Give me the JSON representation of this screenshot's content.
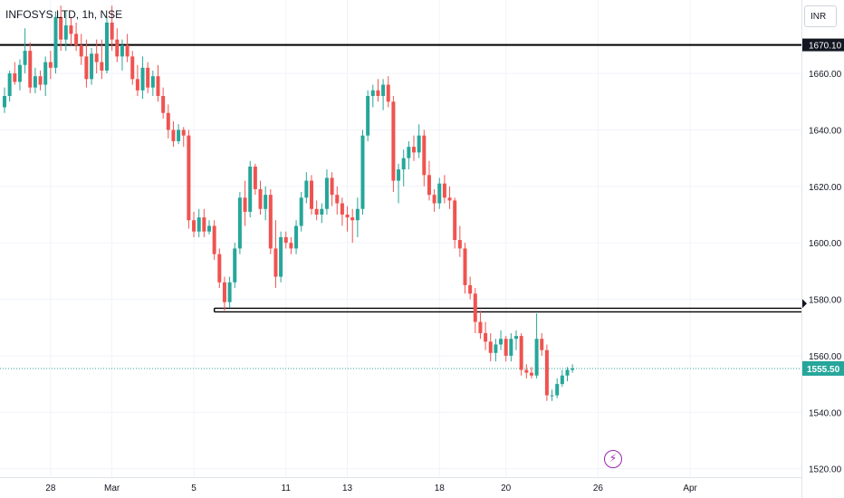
{
  "header": {
    "title": "INFOSYS LTD, 1h, NSE",
    "currency": "INR"
  },
  "colors": {
    "up": "#26a69a",
    "down": "#ef5350",
    "grid": "#f0f3fa",
    "axis_text": "#131722",
    "last_price_bg": "#26a69a",
    "logo": "#9c27b0"
  },
  "logo_icon": "lightning-bolt-icon",
  "chart_data": {
    "type": "candlestick",
    "symbol": "INFOSYS LTD",
    "interval": "1h",
    "exchange": "NSE",
    "y_range": [
      1517,
      1686
    ],
    "y_ticks": [
      1520,
      1540,
      1560,
      1580,
      1600,
      1620,
      1640,
      1660
    ],
    "y_tick_labels": [
      "1520.00",
      "1540.00",
      "1560.00",
      "1580.00",
      "1600.00",
      "1620.00",
      "1640.00",
      "1660.00"
    ],
    "x_labels": [
      {
        "label": "28",
        "bar": 9
      },
      {
        "label": "Mar",
        "bar": 21
      },
      {
        "label": "5",
        "bar": 37
      },
      {
        "label": "11",
        "bar": 55
      },
      {
        "label": "13",
        "bar": 67
      },
      {
        "label": "18",
        "bar": 85
      },
      {
        "label": "20",
        "bar": 98
      },
      {
        "label": "26",
        "bar": 116
      },
      {
        "label": "Apr",
        "bar": 134
      }
    ],
    "grid": true,
    "last_price": 1555.5,
    "last_price_label": "1555.50",
    "horizontal_lines": [
      {
        "price": 1670.1,
        "label": "1670.10",
        "style": "single",
        "start_bar": 0
      },
      {
        "price": 1576.2,
        "style": "double",
        "start_bar": 41
      }
    ],
    "marker_price": 1578.5,
    "candles": [
      [
        1648,
        1655,
        1646,
        1652
      ],
      [
        1652,
        1661,
        1650,
        1660
      ],
      [
        1660,
        1664,
        1656,
        1657
      ],
      [
        1657,
        1665,
        1654,
        1663
      ],
      [
        1663,
        1676,
        1660,
        1668
      ],
      [
        1668,
        1671,
        1653,
        1655
      ],
      [
        1655,
        1662,
        1653,
        1659
      ],
      [
        1659,
        1661,
        1654,
        1656
      ],
      [
        1656,
        1666,
        1652,
        1664
      ],
      [
        1664,
        1668,
        1658,
        1662
      ],
      [
        1662,
        1682,
        1660,
        1680
      ],
      [
        1680,
        1684,
        1668,
        1672
      ],
      [
        1672,
        1682,
        1668,
        1677
      ],
      [
        1677,
        1680,
        1670,
        1674
      ],
      [
        1674,
        1678,
        1668,
        1670
      ],
      [
        1670,
        1674,
        1663,
        1666
      ],
      [
        1666,
        1672,
        1655,
        1658
      ],
      [
        1658,
        1669,
        1656,
        1667
      ],
      [
        1667,
        1672,
        1660,
        1664
      ],
      [
        1664,
        1672,
        1658,
        1661
      ],
      [
        1661,
        1680,
        1660,
        1678
      ],
      [
        1678,
        1684,
        1668,
        1672
      ],
      [
        1672,
        1676,
        1664,
        1666
      ],
      [
        1666,
        1672,
        1661,
        1670
      ],
      [
        1670,
        1674,
        1664,
        1666
      ],
      [
        1666,
        1668,
        1656,
        1658
      ],
      [
        1658,
        1663,
        1652,
        1654
      ],
      [
        1654,
        1666,
        1651,
        1662
      ],
      [
        1662,
        1664,
        1653,
        1655
      ],
      [
        1655,
        1661,
        1652,
        1659
      ],
      [
        1659,
        1663,
        1650,
        1652
      ],
      [
        1652,
        1655,
        1644,
        1646
      ],
      [
        1646,
        1649,
        1637,
        1640
      ],
      [
        1640,
        1643,
        1634,
        1636
      ],
      [
        1636,
        1642,
        1635,
        1640
      ],
      [
        1640,
        1641,
        1634,
        1638
      ],
      [
        1638,
        1640,
        1605,
        1608
      ],
      [
        1608,
        1611,
        1602,
        1604
      ],
      [
        1604,
        1612,
        1602,
        1609
      ],
      [
        1609,
        1612,
        1602,
        1604
      ],
      [
        1604,
        1608,
        1603,
        1606
      ],
      [
        1606,
        1608,
        1594,
        1596
      ],
      [
        1596,
        1598,
        1584,
        1586
      ],
      [
        1586,
        1588,
        1576,
        1579
      ],
      [
        1579,
        1588,
        1577,
        1586
      ],
      [
        1586,
        1600,
        1584,
        1598
      ],
      [
        1598,
        1618,
        1596,
        1616
      ],
      [
        1616,
        1622,
        1606,
        1611
      ],
      [
        1611,
        1629,
        1609,
        1627
      ],
      [
        1627,
        1628,
        1617,
        1619
      ],
      [
        1619,
        1622,
        1610,
        1612
      ],
      [
        1612,
        1620,
        1608,
        1617
      ],
      [
        1617,
        1619,
        1596,
        1598
      ],
      [
        1598,
        1608,
        1584,
        1588
      ],
      [
        1588,
        1604,
        1586,
        1602
      ],
      [
        1602,
        1604,
        1598,
        1600
      ],
      [
        1600,
        1602,
        1596,
        1598
      ],
      [
        1598,
        1608,
        1596,
        1606
      ],
      [
        1606,
        1618,
        1604,
        1616
      ],
      [
        1616,
        1625,
        1614,
        1622
      ],
      [
        1622,
        1624,
        1610,
        1612
      ],
      [
        1612,
        1615,
        1608,
        1610
      ],
      [
        1610,
        1614,
        1607,
        1612
      ],
      [
        1612,
        1626,
        1610,
        1623
      ],
      [
        1623,
        1625,
        1613,
        1617
      ],
      [
        1617,
        1620,
        1610,
        1614
      ],
      [
        1614,
        1616,
        1606,
        1610
      ],
      [
        1610,
        1613,
        1604,
        1609
      ],
      [
        1609,
        1612,
        1600,
        1608
      ],
      [
        1608,
        1616,
        1602,
        1612
      ],
      [
        1612,
        1640,
        1610,
        1638
      ],
      [
        1638,
        1654,
        1636,
        1652
      ],
      [
        1652,
        1656,
        1648,
        1654
      ],
      [
        1654,
        1658,
        1650,
        1652
      ],
      [
        1652,
        1658,
        1647,
        1656
      ],
      [
        1656,
        1659,
        1648,
        1650
      ],
      [
        1650,
        1652,
        1618,
        1622
      ],
      [
        1622,
        1628,
        1614,
        1626
      ],
      [
        1626,
        1633,
        1620,
        1630
      ],
      [
        1630,
        1636,
        1626,
        1634
      ],
      [
        1634,
        1638,
        1629,
        1632
      ],
      [
        1632,
        1642,
        1630,
        1638
      ],
      [
        1638,
        1640,
        1620,
        1624
      ],
      [
        1624,
        1629,
        1615,
        1617
      ],
      [
        1617,
        1619,
        1611,
        1614
      ],
      [
        1614,
        1623,
        1612,
        1621
      ],
      [
        1621,
        1624,
        1614,
        1616
      ],
      [
        1616,
        1620,
        1612,
        1615
      ],
      [
        1615,
        1616,
        1598,
        1601
      ],
      [
        1601,
        1606,
        1595,
        1598
      ],
      [
        1598,
        1600,
        1582,
        1585
      ],
      [
        1585,
        1588,
        1580,
        1582
      ],
      [
        1582,
        1584,
        1568,
        1572
      ],
      [
        1572,
        1576,
        1566,
        1568
      ],
      [
        1568,
        1572,
        1562,
        1565
      ],
      [
        1565,
        1568,
        1558,
        1561
      ],
      [
        1561,
        1566,
        1558,
        1564
      ],
      [
        1564,
        1569,
        1562,
        1566
      ],
      [
        1566,
        1567,
        1558,
        1560
      ],
      [
        1560,
        1568,
        1558,
        1566
      ],
      [
        1566,
        1569,
        1562,
        1567
      ],
      [
        1567,
        1568,
        1553,
        1555
      ],
      [
        1555,
        1557,
        1552,
        1554
      ],
      [
        1554,
        1556,
        1552,
        1553
      ],
      [
        1553,
        1575,
        1552,
        1566
      ],
      [
        1566,
        1568,
        1560,
        1562
      ],
      [
        1562,
        1564,
        1544,
        1546
      ],
      [
        1546,
        1548,
        1544,
        1546
      ],
      [
        1546,
        1552,
        1545,
        1550
      ],
      [
        1550,
        1555,
        1549,
        1553
      ],
      [
        1553,
        1556,
        1551,
        1555
      ],
      [
        1555,
        1557,
        1554,
        1555.5
      ]
    ]
  }
}
